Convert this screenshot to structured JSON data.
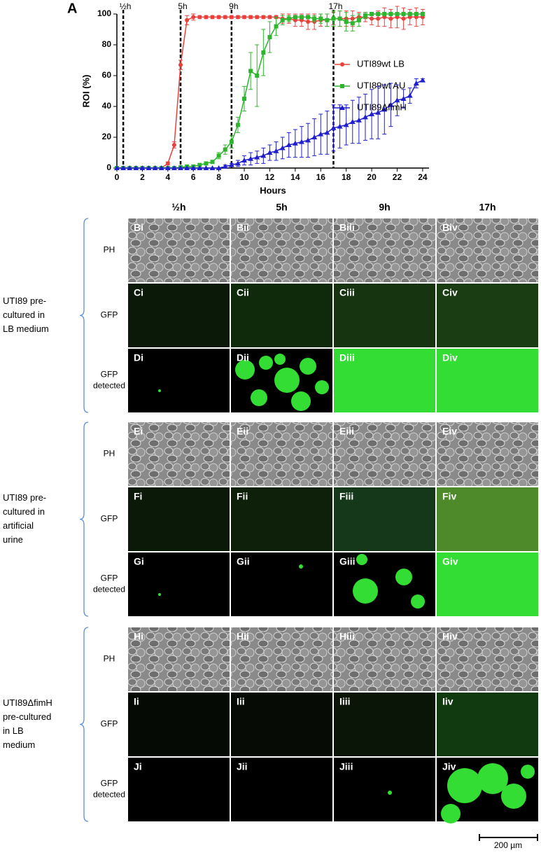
{
  "chart_data": {
    "type": "line",
    "panel_label": "A",
    "xlabel": "Hours",
    "ylabel": "ROI (%)",
    "x": [
      0,
      0.5,
      1,
      1.5,
      2,
      2.5,
      3,
      3.5,
      4,
      4.5,
      5,
      5.5,
      6,
      6.5,
      7,
      7.5,
      8,
      8.5,
      9,
      9.5,
      10,
      10.5,
      11,
      11.5,
      12,
      12.5,
      13,
      13.5,
      14,
      14.5,
      15,
      15.5,
      16,
      16.5,
      17,
      17.5,
      18,
      18.5,
      19,
      19.5,
      20,
      20.5,
      21,
      21.5,
      22,
      22.5,
      23,
      23.5,
      24
    ],
    "series": [
      {
        "name": "UTI89wt LB",
        "color": "#e8413c",
        "marker": "circle",
        "values": [
          0,
          0,
          0,
          0,
          0,
          0,
          0,
          0,
          3,
          15,
          67,
          96,
          98,
          98,
          98,
          98,
          98,
          98,
          98,
          98,
          98,
          98,
          98,
          98,
          98,
          98,
          97,
          97,
          96,
          96,
          95,
          95,
          96,
          96,
          97,
          97,
          97,
          97,
          98,
          98,
          97,
          97,
          98,
          97,
          98,
          97,
          98,
          98,
          98
        ],
        "errors": [
          0,
          0,
          0,
          0,
          0,
          0,
          0,
          0,
          1,
          2,
          3,
          3,
          2,
          1,
          1,
          1,
          1,
          1,
          1,
          1,
          1,
          1,
          1,
          1,
          1,
          1,
          3,
          3,
          4,
          4,
          5,
          5,
          4,
          4,
          4,
          5,
          5,
          5,
          3,
          3,
          4,
          5,
          6,
          6,
          7,
          7,
          5,
          6,
          5
        ]
      },
      {
        "name": "UTI89wt AU",
        "color": "#2db52d",
        "marker": "square",
        "values": [
          0,
          0,
          0,
          0,
          0,
          0,
          0,
          0,
          0,
          0,
          0.5,
          1,
          1,
          2,
          3,
          4,
          8,
          12,
          17,
          28,
          45,
          63,
          60,
          75,
          85,
          92,
          96,
          97,
          98,
          98,
          98,
          97,
          97,
          96,
          97,
          97,
          95,
          94,
          96,
          99,
          100,
          100,
          100,
          100,
          100,
          100,
          100,
          100,
          100
        ],
        "errors": [
          0,
          0,
          0,
          0,
          0,
          0,
          0,
          0,
          0,
          0,
          0,
          0,
          0,
          0,
          1,
          1,
          2,
          3,
          4,
          5,
          8,
          12,
          20,
          15,
          10,
          6,
          3,
          2,
          1,
          1,
          1,
          2,
          3,
          4,
          5,
          5,
          6,
          5,
          4,
          2,
          1,
          1,
          1,
          1,
          1,
          1,
          1,
          1,
          1
        ]
      },
      {
        "name": "UTI89ΔfimH",
        "color": "#1f1fd0",
        "marker": "triangle",
        "values": [
          0,
          0,
          0,
          0,
          0,
          0,
          0,
          0,
          0,
          0,
          0,
          0,
          0,
          0,
          0,
          0,
          0,
          1,
          2,
          3,
          5,
          6,
          7,
          8,
          10,
          11,
          13,
          15,
          16,
          17,
          18,
          20,
          22,
          23,
          26,
          27,
          28,
          30,
          31,
          33,
          35,
          36,
          38,
          41,
          44,
          45,
          47,
          55,
          57
        ],
        "errors": [
          0,
          0,
          0,
          0,
          0,
          0,
          0,
          0,
          0,
          0,
          0,
          0,
          0,
          0,
          0,
          0,
          0,
          1,
          1,
          2,
          3,
          4,
          4,
          5,
          5,
          6,
          7,
          8,
          9,
          10,
          11,
          12,
          13,
          14,
          15,
          14,
          13,
          14,
          15,
          15,
          16,
          17,
          16,
          14,
          10,
          6,
          5,
          3,
          1
        ]
      }
    ],
    "markers": [
      {
        "x": 0.5,
        "label": "½h"
      },
      {
        "x": 5,
        "label": "5h"
      },
      {
        "x": 9,
        "label": "9h"
      },
      {
        "x": 17,
        "label": "17h"
      }
    ],
    "xlim": [
      0,
      24.5
    ],
    "ylim": [
      0,
      100
    ],
    "xticks": [
      0,
      2,
      4,
      6,
      8,
      10,
      12,
      14,
      16,
      18,
      20,
      22,
      24
    ],
    "yticks": [
      0,
      20,
      40,
      60,
      80,
      100
    ],
    "legend": "right"
  },
  "grid": {
    "columns": [
      "½h",
      "5h",
      "9h",
      "17h"
    ],
    "groups": [
      {
        "label": [
          "UTI89 pre-",
          "cultured in",
          "LB medium"
        ],
        "rows": [
          {
            "label": [
              "PH"
            ],
            "tiles": [
              "Bi",
              "Bii",
              "Biii",
              "Biv"
            ]
          },
          {
            "label": [
              "GFP"
            ],
            "tiles": [
              "Ci",
              "Cii",
              "Ciii",
              "Civ"
            ]
          },
          {
            "label": [
              "GFP",
              "detected"
            ],
            "tiles": [
              "Di",
              "Dii",
              "Diii",
              "Div"
            ]
          }
        ]
      },
      {
        "label": [
          "UTI89 pre-",
          "cultured in",
          "artificial",
          "urine"
        ],
        "rows": [
          {
            "label": [
              "PH"
            ],
            "tiles": [
              "Ei",
              "Eii",
              "Eiii",
              "Eiv"
            ]
          },
          {
            "label": [
              "GFP"
            ],
            "tiles": [
              "Fi",
              "Fii",
              "Fiii",
              "Fiv"
            ]
          },
          {
            "label": [
              "GFP",
              "detected"
            ],
            "tiles": [
              "Gi",
              "Gii",
              "Giii",
              "Giv"
            ]
          }
        ]
      },
      {
        "label": [
          "UTI89ΔfimH",
          "pre-cultured",
          "in  LB",
          "medium"
        ],
        "rows": [
          {
            "label": [
              "PH"
            ],
            "tiles": [
              "Hi",
              "Hii",
              "Hiii",
              "Hiv"
            ]
          },
          {
            "label": [
              "GFP"
            ],
            "tiles": [
              "Ii",
              "Iii",
              "Iiii",
              "Iiv"
            ]
          },
          {
            "label": [
              "GFP",
              "detected"
            ],
            "tiles": [
              "Ji",
              "Jii",
              "Jiii",
              "Jiv"
            ]
          }
        ]
      }
    ]
  },
  "scale_bar": "200 µm"
}
